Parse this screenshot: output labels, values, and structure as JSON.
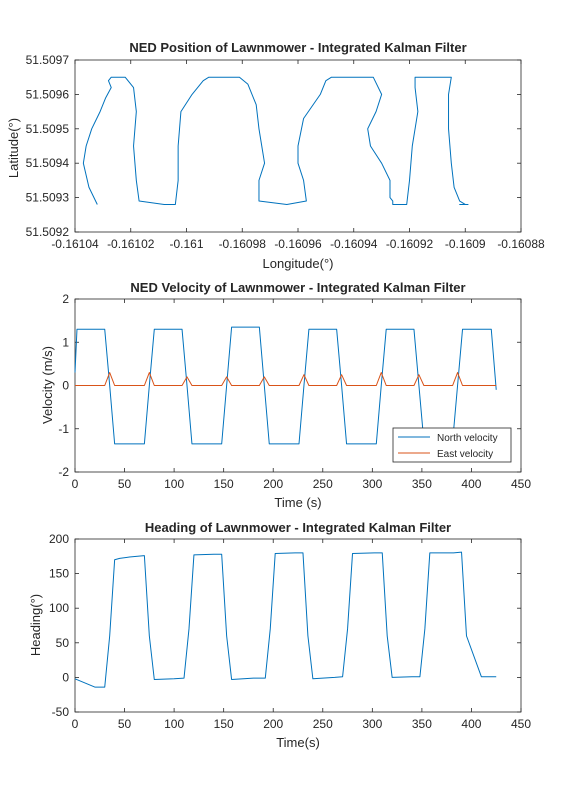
{
  "chart_data": [
    {
      "type": "line",
      "title": "NED Position of Lawnmower - Integrated Kalman Filter",
      "xlabel": "Longitude(°)",
      "ylabel": "Latitude(°)",
      "xlim": [
        -0.16104,
        -0.16088
      ],
      "ylim": [
        51.5092,
        51.5097
      ],
      "xticks": [
        -0.16104,
        -0.16102,
        -0.161,
        -0.16098,
        -0.16096,
        -0.16094,
        -0.16092,
        -0.1609,
        -0.16088
      ],
      "xtick_labels": [
        "-0.16104",
        "-0.16102",
        "-0.161",
        "-0.16098",
        "-0.16096",
        "-0.16094",
        "-0.16092",
        "-0.1609",
        "-0.16088"
      ],
      "yticks": [
        51.5092,
        51.5093,
        51.5094,
        51.5095,
        51.5096,
        51.5097
      ],
      "ytick_labels": [
        "51.5092",
        "51.5093",
        "51.5094",
        "51.5095",
        "51.5096",
        "51.5097"
      ],
      "series": [
        {
          "color": "#0072BD",
          "x": [
            -0.161032,
            -0.161035,
            -0.161037,
            -0.161036,
            -0.161034,
            -0.161031,
            -0.161029,
            -0.161027,
            -0.161028,
            -0.161027,
            -0.161022,
            -0.161019,
            -0.161018,
            -0.161019,
            -0.161018,
            -0.161017,
            -0.161008,
            -0.161004,
            -0.161003,
            -0.161003,
            -0.161002,
            -0.160998,
            -0.160994,
            -0.160992,
            -0.160991,
            -0.160981,
            -0.160978,
            -0.160975,
            -0.160974,
            -0.160973,
            -0.160972,
            -0.160974,
            -0.160974,
            -0.160964,
            -0.160957,
            -0.160958,
            -0.16096,
            -0.16096,
            -0.160958,
            -0.160952,
            -0.16095,
            -0.160948,
            -0.160948,
            -0.160933,
            -0.16093,
            -0.160932,
            -0.160935,
            -0.160934,
            -0.16093,
            -0.160927,
            -0.160927,
            -0.160926,
            -0.160926,
            -0.160921,
            -0.16092,
            -0.160919,
            -0.160917,
            -0.160918,
            -0.160918,
            -0.160906,
            -0.160905,
            -0.160906,
            -0.160906,
            -0.160905,
            -0.160904,
            -0.160902,
            -0.1609,
            -0.160899,
            -0.160902,
            -0.1609
          ],
          "y": [
            51.50928,
            51.50933,
            51.5094,
            51.50945,
            51.5095,
            51.50955,
            51.50959,
            51.50962,
            51.50964,
            51.50965,
            51.50965,
            51.50962,
            51.50955,
            51.50945,
            51.50935,
            51.50929,
            51.50928,
            51.50928,
            51.50935,
            51.50945,
            51.50955,
            51.5096,
            51.50964,
            51.50965,
            51.50965,
            51.50965,
            51.50963,
            51.50957,
            51.5095,
            51.50945,
            51.5094,
            51.50935,
            51.50929,
            51.50928,
            51.50929,
            51.50935,
            51.5094,
            51.50945,
            51.50953,
            51.5096,
            51.50964,
            51.50965,
            51.50965,
            51.50965,
            51.5096,
            51.50955,
            51.5095,
            51.50945,
            51.5094,
            51.50935,
            51.5093,
            51.50929,
            51.50928,
            51.50928,
            51.50935,
            51.50945,
            51.50955,
            51.50962,
            51.50965,
            51.50965,
            51.50965,
            51.5096,
            51.5095,
            51.5094,
            51.50933,
            51.50929,
            51.50928,
            51.50928,
            51.50928,
            51.50928
          ]
        }
      ]
    },
    {
      "type": "line",
      "title": "NED Velocity of Lawnmower - Integrated Kalman Filter",
      "xlabel": "Time (s)",
      "ylabel": "Velocity (m/s)",
      "xlim": [
        0,
        450
      ],
      "ylim": [
        -2,
        2
      ],
      "xticks": [
        0,
        50,
        100,
        150,
        200,
        250,
        300,
        350,
        400,
        450
      ],
      "xtick_labels": [
        "0",
        "50",
        "100",
        "150",
        "200",
        "250",
        "300",
        "350",
        "400",
        "450"
      ],
      "yticks": [
        -2,
        -1,
        0,
        1,
        2
      ],
      "ytick_labels": [
        "-2",
        "-1",
        "0",
        "1",
        "2"
      ],
      "legend": "bottom-right",
      "series": [
        {
          "name": "North velocity",
          "color": "#0072BD",
          "x": [
            0,
            2,
            30,
            35,
            40,
            70,
            75,
            80,
            108,
            113,
            118,
            148,
            153,
            158,
            186,
            191,
            196,
            226,
            231,
            236,
            264,
            269,
            274,
            304,
            309,
            314,
            342,
            347,
            352,
            381,
            386,
            391,
            420,
            425
          ],
          "y": [
            0.3,
            1.3,
            1.3,
            0.0,
            -1.35,
            -1.35,
            0.0,
            1.3,
            1.3,
            0.0,
            -1.35,
            -1.35,
            0.0,
            1.35,
            1.35,
            0.0,
            -1.35,
            -1.35,
            0.0,
            1.3,
            1.3,
            0.0,
            -1.35,
            -1.35,
            0.0,
            1.3,
            1.3,
            0.0,
            -1.3,
            -1.3,
            0.0,
            1.3,
            1.3,
            -0.1
          ]
        },
        {
          "name": "East velocity",
          "color": "#D95319",
          "x": [
            0,
            30,
            35,
            40,
            70,
            75,
            80,
            108,
            113,
            118,
            148,
            153,
            158,
            186,
            191,
            196,
            226,
            231,
            236,
            264,
            269,
            274,
            304,
            309,
            314,
            342,
            347,
            352,
            381,
            386,
            391,
            425
          ],
          "y": [
            0.0,
            0.0,
            0.3,
            0.0,
            0.0,
            0.3,
            0.0,
            0.0,
            0.2,
            0.0,
            0.0,
            0.2,
            0.0,
            0.0,
            0.2,
            0.0,
            0.0,
            0.25,
            0.0,
            0.0,
            0.25,
            0.0,
            0.0,
            0.3,
            0.0,
            0.0,
            0.25,
            0.0,
            0.0,
            0.3,
            0.0,
            0.0
          ]
        }
      ]
    },
    {
      "type": "line",
      "title": "Heading of Lawnmower - Integrated Kalman Filter",
      "xlabel": "Time(s)",
      "ylabel": "Heading(°)",
      "xlim": [
        0,
        450
      ],
      "ylim": [
        -50,
        200
      ],
      "xticks": [
        0,
        50,
        100,
        150,
        200,
        250,
        300,
        350,
        400,
        450
      ],
      "xtick_labels": [
        "0",
        "50",
        "100",
        "150",
        "200",
        "250",
        "300",
        "350",
        "400",
        "450"
      ],
      "yticks": [
        -50,
        0,
        50,
        100,
        150,
        200
      ],
      "ytick_labels": [
        "-50",
        "0",
        "50",
        "100",
        "150",
        "200"
      ],
      "series": [
        {
          "color": "#0072BD",
          "x": [
            0,
            10,
            20,
            30,
            35,
            40,
            45,
            55,
            70,
            75,
            80,
            100,
            110,
            115,
            120,
            140,
            148,
            153,
            158,
            180,
            192,
            197,
            202,
            222,
            230,
            235,
            240,
            262,
            270,
            275,
            280,
            302,
            310,
            315,
            320,
            340,
            348,
            353,
            358,
            382,
            390,
            395,
            410,
            425
          ],
          "y": [
            -2,
            -8,
            -14,
            -14,
            60,
            170,
            172,
            174,
            176,
            60,
            -3,
            -2,
            -1,
            70,
            177,
            178,
            178,
            60,
            -3,
            -1,
            -1,
            70,
            179,
            180,
            180,
            60,
            -2,
            0,
            1,
            70,
            179,
            180,
            180,
            60,
            0,
            1,
            1,
            70,
            180,
            180,
            181,
            60,
            1,
            1
          ]
        }
      ]
    }
  ]
}
